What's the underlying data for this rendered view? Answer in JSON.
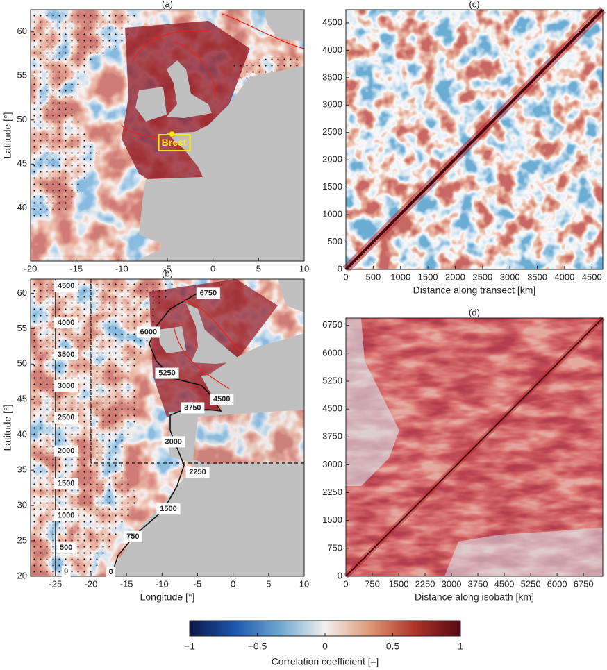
{
  "chart_data": [
    {
      "type": "map",
      "title": "(a)",
      "ylabel": "Latitude [°]",
      "xlim": [
        -20,
        10
      ],
      "ylim": [
        34,
        62.5
      ],
      "xticks": [
        -20,
        -15,
        -10,
        -5,
        0,
        5,
        10
      ],
      "yticks": [
        40,
        45,
        50,
        55,
        60
      ],
      "annotations": [
        {
          "text": "Brest",
          "x": -4.5,
          "y": 48.4
        }
      ],
      "annotation_color": "#ffee00"
    },
    {
      "type": "map",
      "title": "(b)",
      "xlabel": "Longitude [°]",
      "ylabel": "Latitude [°]",
      "xlim": [
        -28.5,
        10
      ],
      "ylim": [
        20,
        62
      ],
      "xticks": [
        -25,
        -20,
        -15,
        -10,
        -5,
        0,
        5,
        10
      ],
      "yticks": [
        20,
        25,
        30,
        35,
        40,
        45,
        50,
        55,
        60
      ],
      "annotations": [
        {
          "text": "4500",
          "x": -23.5,
          "y": 61.0
        },
        {
          "text": "4000",
          "x": -23.5,
          "y": 55.8
        },
        {
          "text": "3500",
          "x": -23.5,
          "y": 51.3
        },
        {
          "text": "3000",
          "x": -23.5,
          "y": 46.9
        },
        {
          "text": "2500",
          "x": -23.5,
          "y": 42.4
        },
        {
          "text": "2000",
          "x": -23.5,
          "y": 37.7
        },
        {
          "text": "1500",
          "x": -23.5,
          "y": 33.1
        },
        {
          "text": "1000",
          "x": -23.5,
          "y": 28.6
        },
        {
          "text": "500",
          "x": -23.5,
          "y": 24.0
        },
        {
          "text": "0",
          "x": -23.5,
          "y": 20.7
        },
        {
          "text": "0",
          "x": -17.2,
          "y": 20.6
        },
        {
          "text": "750",
          "x": -14.1,
          "y": 25.6
        },
        {
          "text": "1500",
          "x": -9.1,
          "y": 29.5
        },
        {
          "text": "2250",
          "x": -5.0,
          "y": 34.7
        },
        {
          "text": "3000",
          "x": -8.4,
          "y": 39.0
        },
        {
          "text": "3750",
          "x": -5.7,
          "y": 43.8
        },
        {
          "text": "4500",
          "x": -1.6,
          "y": 45.0
        },
        {
          "text": "5250",
          "x": -9.3,
          "y": 48.7
        },
        {
          "text": "6000",
          "x": -11.9,
          "y": 54.5
        },
        {
          "text": "6750",
          "x": -3.5,
          "y": 60.0
        }
      ]
    },
    {
      "type": "heatmap",
      "title": "(c)",
      "xlabel": "Distance along transect [km]",
      "xlim": [
        0,
        4700
      ],
      "ylim": [
        0,
        4740
      ],
      "xticks": [
        0,
        500,
        1000,
        1500,
        2000,
        2500,
        3000,
        3500,
        4000,
        4500
      ],
      "yticks": [
        0,
        500,
        1000,
        1500,
        2000,
        2500,
        3000,
        3500,
        4000,
        4500
      ]
    },
    {
      "type": "heatmap",
      "title": "(d)",
      "xlabel": "Distance along isobath [km]",
      "xlim": [
        0,
        7300
      ],
      "ylim": [
        0,
        6950
      ],
      "xticks": [
        0,
        750,
        1500,
        2250,
        3000,
        3750,
        4500,
        5250,
        6000,
        6750
      ],
      "yticks": [
        0,
        750,
        1500,
        2250,
        3000,
        3750,
        4500,
        5250,
        6000,
        6750
      ]
    },
    {
      "type": "colorbar",
      "label": "Correlation coefficient [–]",
      "xlim": [
        -1,
        1
      ],
      "xticks": [
        {
          "value": -1,
          "label": "−1"
        },
        {
          "value": -0.5,
          "label": "−0.5"
        },
        0,
        0.5,
        1
      ]
    }
  ]
}
